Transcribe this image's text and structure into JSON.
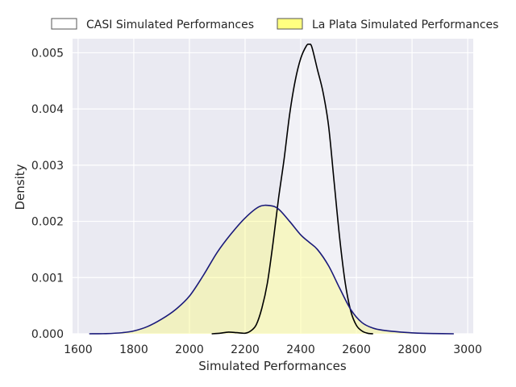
{
  "chart_data": {
    "type": "area",
    "title": "",
    "xlabel": "Simulated Performances",
    "ylabel": "Density",
    "xlim": [
      1580,
      3020
    ],
    "ylim": [
      0,
      0.00525
    ],
    "xticks": [
      1600,
      1800,
      2000,
      2200,
      2400,
      2600,
      2800,
      3000
    ],
    "yticks": [
      0.0,
      0.001,
      0.002,
      0.003,
      0.004,
      0.005
    ],
    "xtick_labels": [
      "1600",
      "1800",
      "2000",
      "2200",
      "2400",
      "2600",
      "2800",
      "3000"
    ],
    "ytick_labels": [
      "0.000",
      "0.001",
      "0.002",
      "0.003",
      "0.004",
      "0.005"
    ],
    "grid": true,
    "legend_position": "top-center, outside plot",
    "series": [
      {
        "name": "CASI Simulated Performances",
        "line_color": "#000000",
        "fill_color": "#ffffff",
        "fill_opacity": 0.35,
        "x": [
          2080,
          2110,
          2140,
          2170,
          2200,
          2220,
          2240,
          2260,
          2280,
          2300,
          2320,
          2340,
          2360,
          2380,
          2400,
          2420,
          2430,
          2440,
          2460,
          2480,
          2500,
          2520,
          2540,
          2560,
          2580,
          2600,
          2620,
          2640,
          2660
        ],
        "y": [
          0.0,
          1e-05,
          3e-05,
          2e-05,
          1e-05,
          5e-05,
          0.00016,
          0.00045,
          0.0009,
          0.0016,
          0.0024,
          0.0031,
          0.0039,
          0.0045,
          0.0049,
          0.00512,
          0.00515,
          0.0051,
          0.0047,
          0.0043,
          0.0037,
          0.0027,
          0.0017,
          0.0009,
          0.0004,
          0.00015,
          5e-05,
          1e-05,
          0.0
        ]
      },
      {
        "name": "La Plata Simulated Performances",
        "line_color": "#1a1a7a",
        "fill_color": "#ffff66",
        "fill_opacity": 0.35,
        "x": [
          1640,
          1700,
          1760,
          1800,
          1850,
          1900,
          1950,
          2000,
          2050,
          2100,
          2150,
          2200,
          2250,
          2290,
          2320,
          2360,
          2400,
          2430,
          2460,
          2500,
          2540,
          2580,
          2620,
          2660,
          2700,
          2760,
          2820,
          2880,
          2950
        ],
        "y": [
          0.0,
          3e-06,
          2e-05,
          5e-05,
          0.00013,
          0.00026,
          0.00043,
          0.00067,
          0.00104,
          0.00145,
          0.00178,
          0.00206,
          0.00226,
          0.00228,
          0.00222,
          0.002,
          0.00176,
          0.00163,
          0.0015,
          0.00121,
          0.00081,
          0.00043,
          0.0002,
          0.0001,
          6e-05,
          3e-05,
          1.2e-05,
          4e-06,
          0.0
        ]
      }
    ]
  },
  "colors": {
    "plot_background": "#eaeaf2",
    "grid": "#ffffff",
    "casi_line": "#000000",
    "laplata_line": "#1a1a7a",
    "laplata_fill": "#ffff66"
  }
}
